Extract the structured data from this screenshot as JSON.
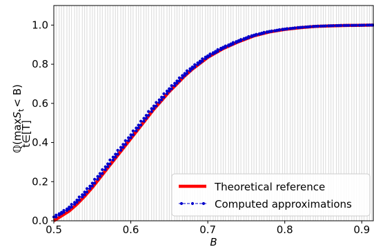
{
  "chart_data": {
    "type": "line",
    "title": "",
    "xlabel": "B",
    "ylabel": "ℚ(max S_t < B), t∈[T]",
    "ylabel_parts": {
      "q": "ℚ(",
      "max": "max",
      "s": "S",
      "t_sub": "t",
      "rest": "< B)",
      "under": "t∈[T]"
    },
    "xlim": [
      0.5,
      0.915
    ],
    "ylim": [
      0.0,
      1.1
    ],
    "xticks": [
      {
        "value": 0.5,
        "label": "0.5"
      },
      {
        "value": 0.6,
        "label": "0.6"
      },
      {
        "value": 0.7,
        "label": "0.7"
      },
      {
        "value": 0.8,
        "label": "0.8"
      },
      {
        "value": 0.9,
        "label": "0.9"
      }
    ],
    "yticks": [
      {
        "value": 0.0,
        "label": "0.0"
      },
      {
        "value": 0.2,
        "label": "0.2"
      },
      {
        "value": 0.4,
        "label": "0.4"
      },
      {
        "value": 0.6,
        "label": "0.6"
      },
      {
        "value": 0.8,
        "label": "0.8"
      },
      {
        "value": 1.0,
        "label": "1.0"
      }
    ],
    "grid": "vertical lines at grid nodes",
    "legend_position": "lower-right",
    "series": [
      {
        "name": "Theoretical reference",
        "style": "solid-thick",
        "color": "#ff0000",
        "x": [
          0.5,
          0.51,
          0.52,
          0.53,
          0.54,
          0.55,
          0.56,
          0.57,
          0.58,
          0.59,
          0.6,
          0.61,
          0.62,
          0.63,
          0.64,
          0.65,
          0.66,
          0.67,
          0.68,
          0.69,
          0.7,
          0.72,
          0.74,
          0.76,
          0.78,
          0.8,
          0.82,
          0.84,
          0.86,
          0.88,
          0.9,
          0.915
        ],
        "y": [
          0.0,
          0.025,
          0.05,
          0.085,
          0.125,
          0.17,
          0.22,
          0.27,
          0.32,
          0.37,
          0.42,
          0.47,
          0.52,
          0.57,
          0.615,
          0.66,
          0.7,
          0.74,
          0.775,
          0.805,
          0.835,
          0.88,
          0.915,
          0.945,
          0.965,
          0.978,
          0.987,
          0.993,
          0.996,
          0.998,
          0.999,
          1.0
        ]
      },
      {
        "name": "Computed approximations",
        "style": "dashed-dots",
        "color": "#0000cc",
        "nodes": [
          0.5,
          0.503,
          0.507,
          0.51,
          0.513,
          0.517,
          0.52,
          0.523,
          0.527,
          0.53,
          0.533,
          0.537,
          0.54,
          0.543,
          0.547,
          0.55,
          0.553,
          0.557,
          0.56,
          0.563,
          0.567,
          0.57,
          0.573,
          0.577,
          0.58,
          0.583,
          0.587,
          0.59,
          0.593,
          0.597,
          0.6,
          0.603,
          0.607,
          0.61,
          0.613,
          0.617,
          0.62,
          0.623,
          0.627,
          0.63,
          0.633,
          0.637,
          0.64,
          0.643,
          0.647,
          0.65,
          0.653,
          0.657,
          0.66,
          0.663,
          0.667,
          0.67,
          0.673,
          0.677,
          0.68,
          0.683,
          0.687,
          0.69,
          0.693,
          0.697,
          0.7,
          0.703,
          0.707,
          0.71,
          0.713,
          0.717,
          0.72,
          0.723,
          0.727,
          0.73,
          0.733,
          0.737,
          0.74,
          0.743,
          0.747,
          0.75,
          0.753,
          0.757,
          0.76,
          0.763,
          0.767,
          0.77,
          0.773,
          0.777,
          0.78,
          0.783,
          0.787,
          0.79,
          0.793,
          0.797,
          0.8,
          0.803,
          0.807,
          0.81,
          0.813,
          0.817,
          0.82,
          0.823,
          0.827,
          0.83,
          0.833,
          0.837,
          0.84,
          0.843,
          0.847,
          0.85,
          0.853,
          0.857,
          0.86,
          0.863,
          0.867,
          0.87,
          0.873,
          0.877,
          0.88,
          0.883,
          0.887,
          0.89,
          0.893,
          0.897,
          0.9,
          0.903,
          0.907,
          0.91,
          0.913
        ]
      }
    ]
  }
}
